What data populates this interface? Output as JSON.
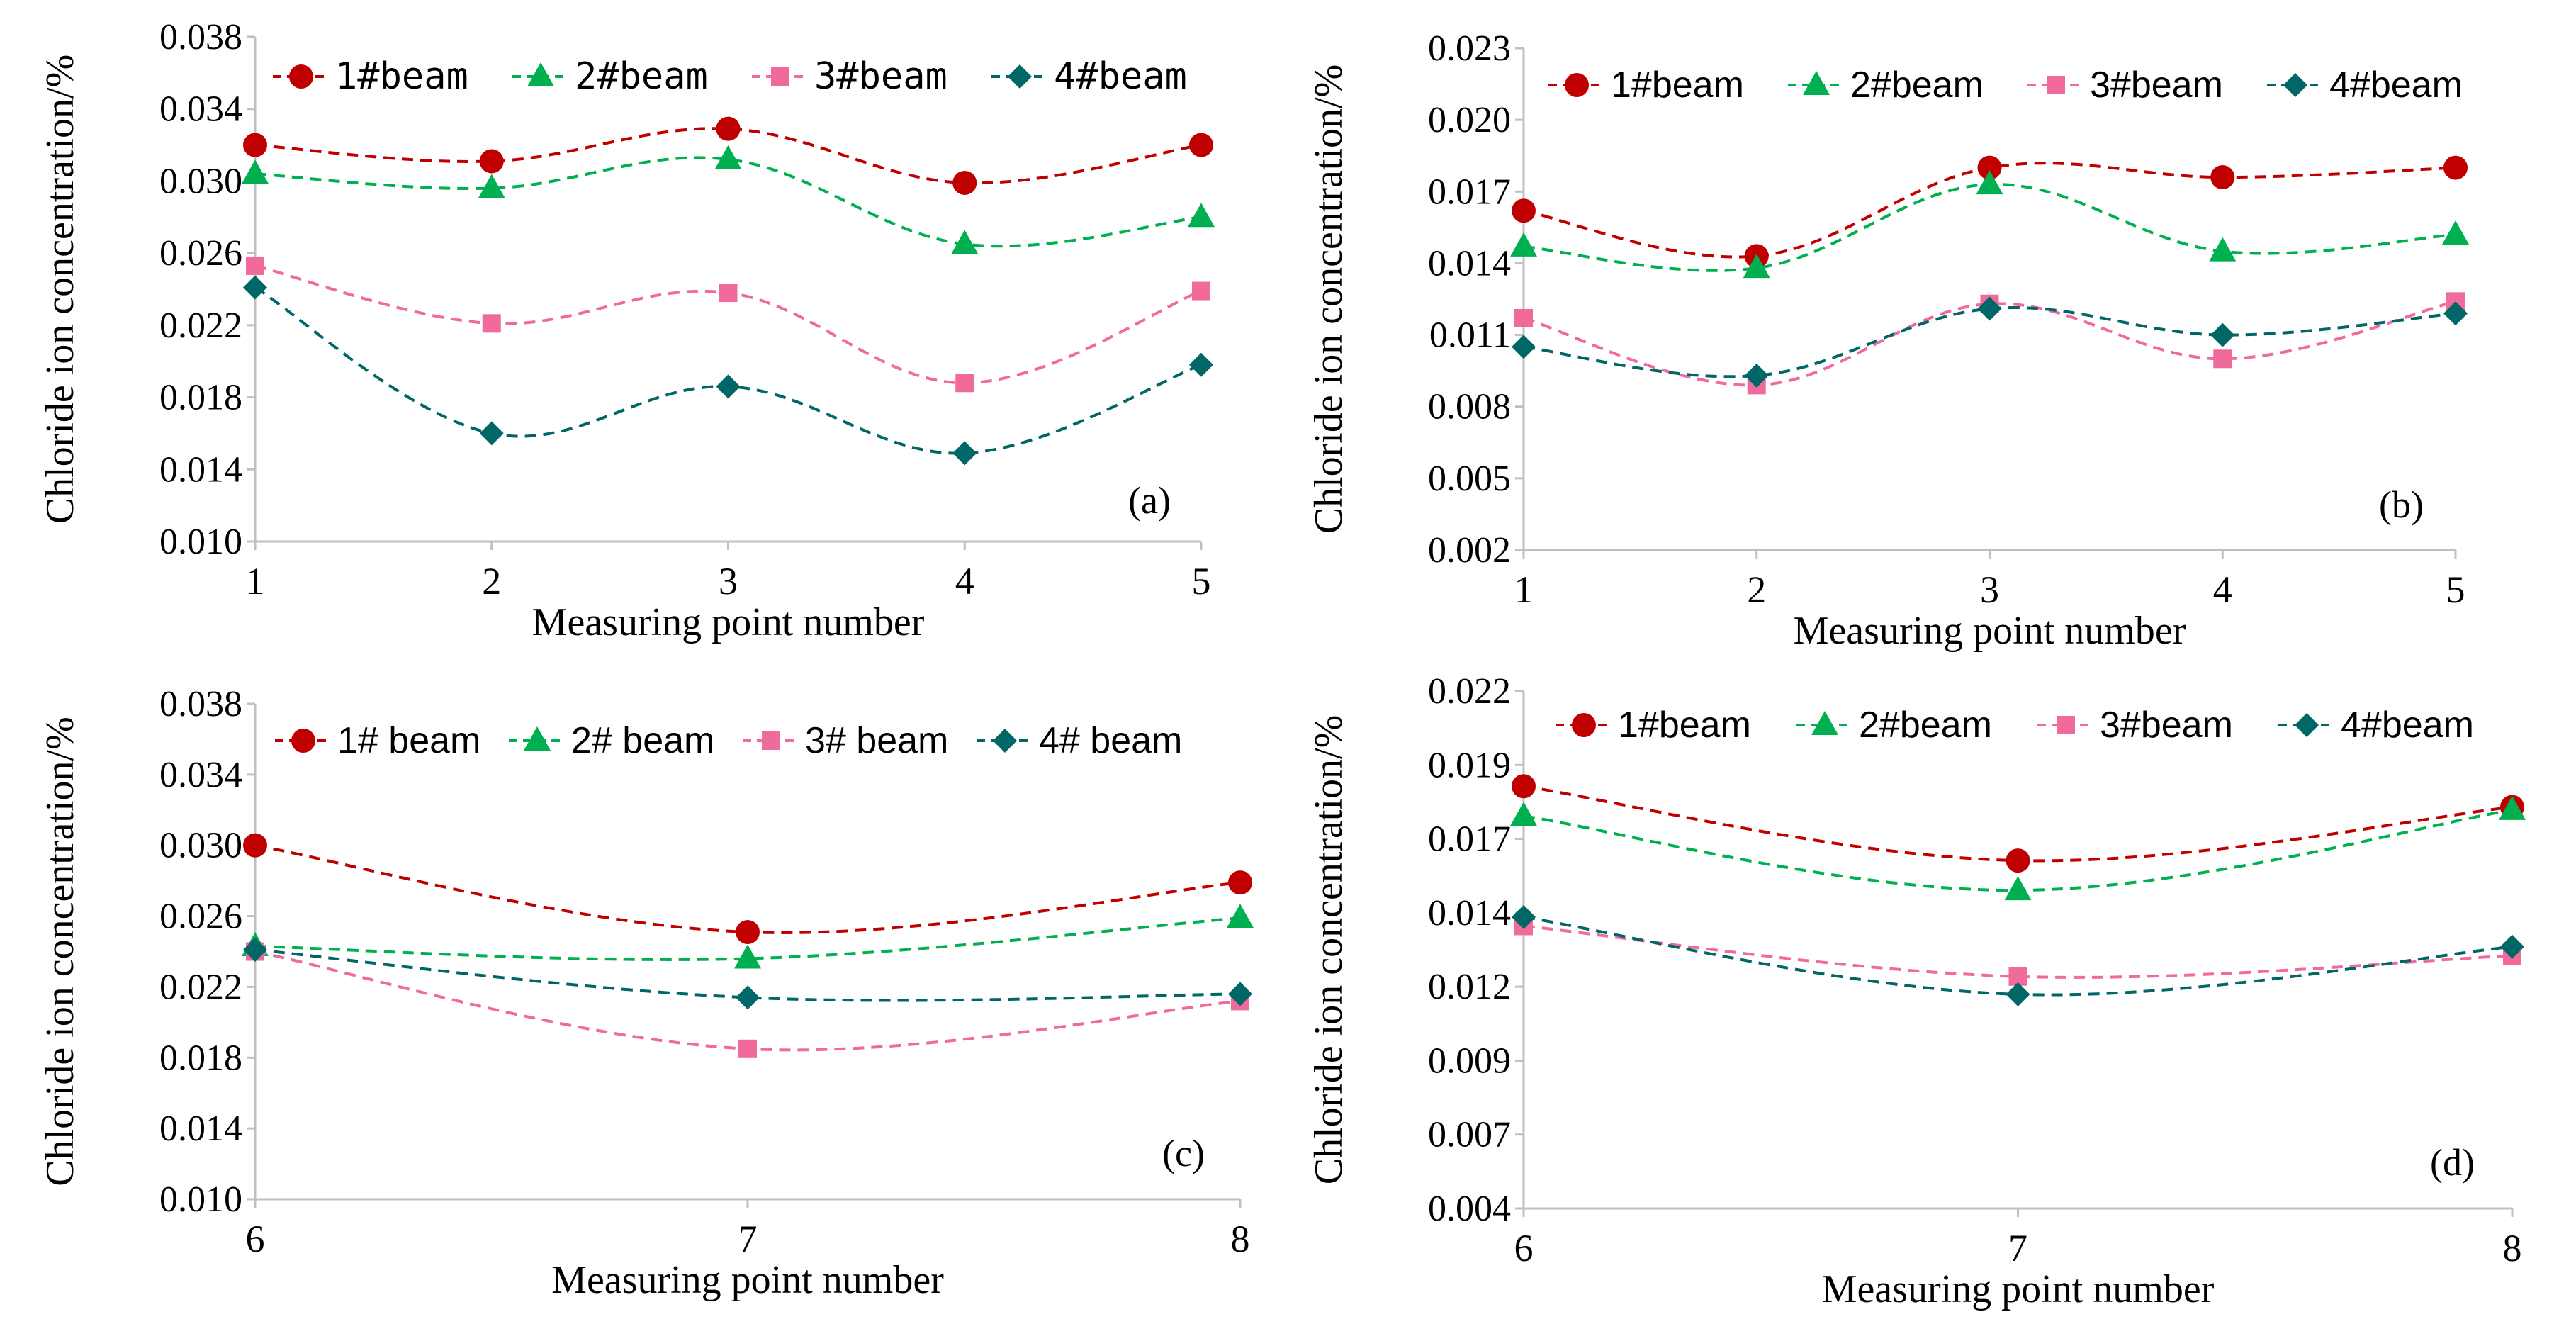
{
  "colors": {
    "beam1": "#c00000",
    "beam2": "#00b050",
    "beam3": "#f06a9c",
    "beam4": "#006666",
    "axis": "#c0c0c0",
    "text": "#000000"
  },
  "chart_data": [
    {
      "type": "line",
      "panel_label": "(a)",
      "xlabel": "Measuring point number",
      "ylabel": "Chloride ion concentration/%",
      "x": [
        1,
        2,
        3,
        4,
        5
      ],
      "x_tick_labels": [
        "1",
        "2",
        "3",
        "4",
        "5"
      ],
      "y_tick_labels": [
        "0.010",
        "0.014",
        "0.018",
        "0.022",
        "0.026",
        "0.030",
        "0.034",
        "0.038"
      ],
      "ylim": [
        0.01,
        0.038
      ],
      "legend_font": "mono",
      "legend": [
        "1#beam",
        "2#beam",
        "3#beam",
        "4#beam"
      ],
      "series": [
        {
          "name": "1#beam",
          "marker": "circle",
          "values": [
            0.032,
            0.0311,
            0.0329,
            0.0299,
            0.032
          ]
        },
        {
          "name": "2#beam",
          "marker": "triangle",
          "values": [
            0.0304,
            0.0296,
            0.0312,
            0.0265,
            0.028
          ]
        },
        {
          "name": "3#beam",
          "marker": "square",
          "values": [
            0.0253,
            0.0221,
            0.0238,
            0.0188,
            0.0239
          ]
        },
        {
          "name": "4#beam",
          "marker": "diamond",
          "values": [
            0.0241,
            0.016,
            0.0186,
            0.0149,
            0.0198
          ]
        }
      ]
    },
    {
      "type": "line",
      "panel_label": "(b)",
      "xlabel": "Measuring point number",
      "ylabel": "Chloride ion concentration/%",
      "x": [
        1,
        2,
        3,
        4,
        5
      ],
      "x_tick_labels": [
        "1",
        "2",
        "3",
        "4",
        "5"
      ],
      "y_tick_labels": [
        "0.002",
        "0.005",
        "0.008",
        "0.011",
        "0.014",
        "0.017",
        "0.020",
        "0.023"
      ],
      "ylim": [
        0.002,
        0.023
      ],
      "legend_font": "sans",
      "legend": [
        "1#beam",
        "2#beam",
        "3#beam",
        "4#beam"
      ],
      "series": [
        {
          "name": "1#beam",
          "marker": "circle",
          "values": [
            0.0162,
            0.0143,
            0.018,
            0.0176,
            0.018
          ]
        },
        {
          "name": "2#beam",
          "marker": "triangle",
          "values": [
            0.0147,
            0.0138,
            0.0173,
            0.0145,
            0.0152
          ]
        },
        {
          "name": "3#beam",
          "marker": "square",
          "values": [
            0.0117,
            0.0089,
            0.0123,
            0.01,
            0.0124
          ]
        },
        {
          "name": "4#beam",
          "marker": "diamond",
          "values": [
            0.0105,
            0.0093,
            0.0121,
            0.011,
            0.0119
          ]
        }
      ]
    },
    {
      "type": "line",
      "panel_label": "(c)",
      "xlabel": "Measuring point number",
      "ylabel": "Chloride ion concentration/%",
      "x": [
        6,
        7,
        8
      ],
      "x_tick_labels": [
        "6",
        "7",
        "8"
      ],
      "y_tick_labels": [
        "0.010",
        "0.014",
        "0.018",
        "0.022",
        "0.026",
        "0.030",
        "0.034",
        "0.038"
      ],
      "ylim": [
        0.01,
        0.038
      ],
      "legend_font": "sans",
      "legend": [
        "1# beam",
        "2# beam",
        "3# beam",
        "4# beam"
      ],
      "series": [
        {
          "name": "1# beam",
          "marker": "circle",
          "values": [
            0.03,
            0.0251,
            0.0279
          ]
        },
        {
          "name": "2# beam",
          "marker": "triangle",
          "values": [
            0.0243,
            0.0236,
            0.0259
          ]
        },
        {
          "name": "3# beam",
          "marker": "square",
          "values": [
            0.024,
            0.0185,
            0.0212
          ]
        },
        {
          "name": "4# beam",
          "marker": "diamond",
          "values": [
            0.0241,
            0.0214,
            0.0216
          ]
        }
      ]
    },
    {
      "type": "line",
      "panel_label": "(d)",
      "xlabel": "Measuring point number",
      "ylabel": "Chloride ion concentration/%",
      "x": [
        6,
        7,
        8
      ],
      "x_tick_labels": [
        "6",
        "7",
        "8"
      ],
      "y_tick_labels": [
        "0.004",
        "0.007",
        "0.009",
        "0.012",
        "0.014",
        "0.017",
        "0.019",
        "0.022"
      ],
      "ylim": [
        0.0042,
        0.0216
      ],
      "legend_font": "sans",
      "legend": [
        "1#beam",
        "2#beam",
        "3#beam",
        "4#beam"
      ],
      "series": [
        {
          "name": "1#beam",
          "marker": "circle",
          "values": [
            0.0184,
            0.0159,
            0.0177
          ]
        },
        {
          "name": "2#beam",
          "marker": "triangle",
          "values": [
            0.0174,
            0.0149,
            0.0176
          ]
        },
        {
          "name": "3#beam",
          "marker": "square",
          "values": [
            0.0137,
            0.012,
            0.0127
          ]
        },
        {
          "name": "4#beam",
          "marker": "diamond",
          "values": [
            0.014,
            0.0114,
            0.013
          ]
        }
      ]
    }
  ]
}
